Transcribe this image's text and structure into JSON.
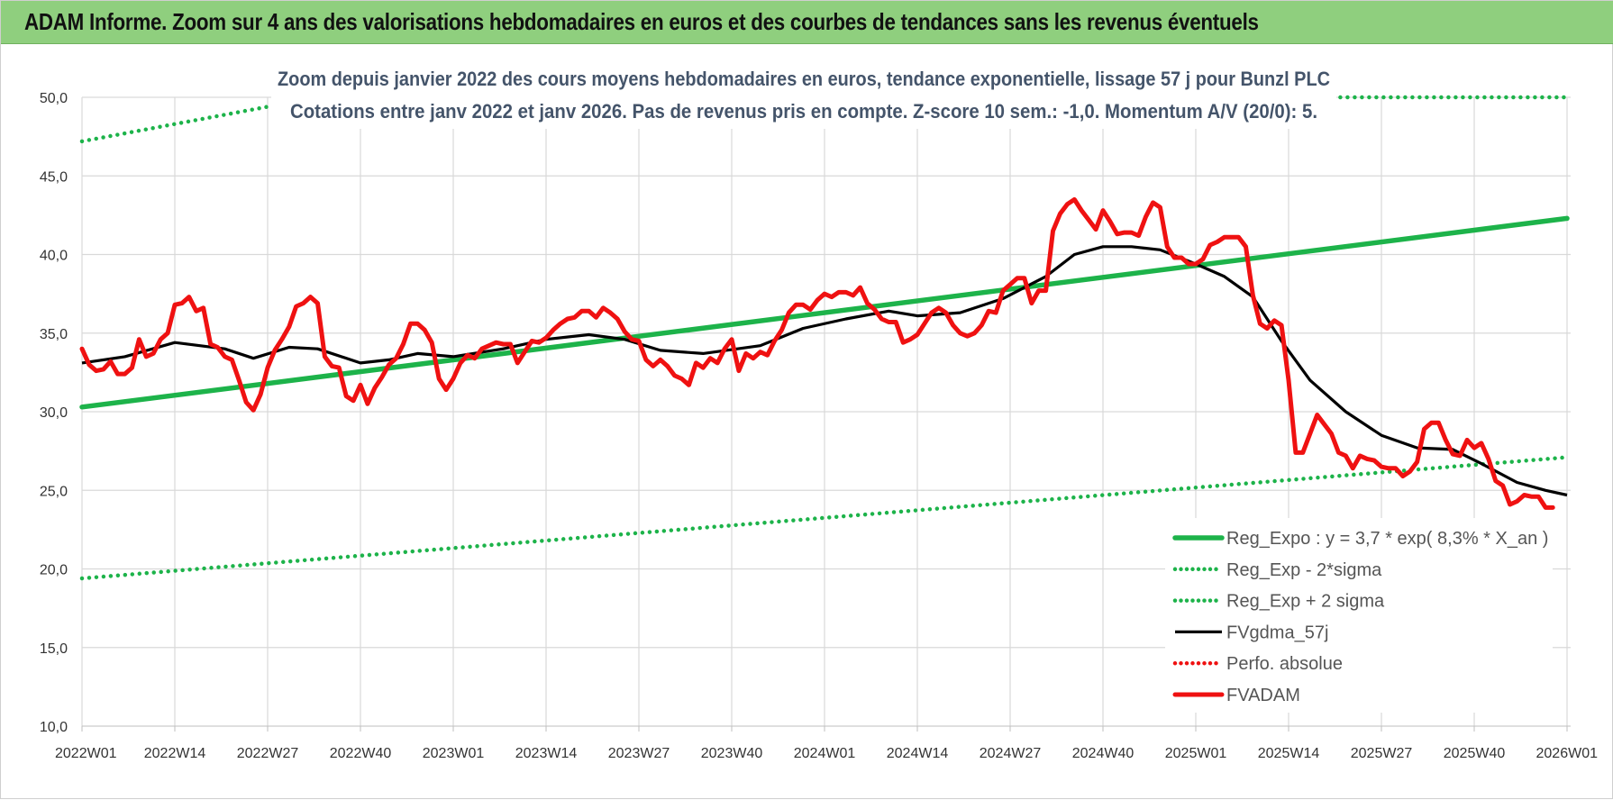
{
  "banner": {
    "title": "ADAM Informe. Zoom sur 4 ans des valorisations hebdomadaires en euros et des courbes de tendances sans les revenus éventuels"
  },
  "colors": {
    "banner_bg": "#8fcf7e",
    "trend_green": "#1db34a",
    "price_red": "#ef1111",
    "smooth_black": "#000000",
    "subtitle": "#44546a",
    "grid": "#d9d9d9"
  },
  "chart_data": {
    "type": "line",
    "title": "Zoom depuis janvier 2022 des cours moyens hebdomadaires en euros, tendance exponentielle, lissage 57 j pour Bunzl PLC",
    "subtitle": "Cotations entre janv 2022 et janv 2026. Pas de revenus pris en compte. Z-score 10 sem.: -1,0. Momentum A/V (20/0): 5.",
    "xlabel": "",
    "ylabel": "",
    "ylim": [
      10,
      50
    ],
    "yticks": [
      "10,0",
      "15,0",
      "20,0",
      "25,0",
      "30,0",
      "35,0",
      "40,0",
      "45,0",
      "50,0"
    ],
    "x_start": "2022W01",
    "x_end": "2026W01",
    "x_ticks": [
      "2022W01",
      "2022W14",
      "2022W27",
      "2022W40",
      "2023W01",
      "2023W14",
      "2023W27",
      "2023W40",
      "2024W01",
      "2024W14",
      "2024W27",
      "2024W40",
      "2025W01",
      "2025W14",
      "2025W27",
      "2025W40",
      "2026W01"
    ],
    "grid": true,
    "legend_position": "bottom-right",
    "legend": [
      {
        "label": "Reg_Expo : y = 3,7 * exp( 8,3% *  X_an )",
        "color": "#1db34a",
        "style": "solid-thick"
      },
      {
        "label": "Reg_Exp - 2*sigma",
        "color": "#1db34a",
        "style": "dotted"
      },
      {
        "label": "Reg_Exp + 2 sigma",
        "color": "#1db34a",
        "style": "dotted"
      },
      {
        "label": "FVgdma_57j",
        "color": "#000000",
        "style": "solid"
      },
      {
        "label": "Perfo. absolue",
        "color": "#ef1111",
        "style": "dotted"
      },
      {
        "label": "FVADAM",
        "color": "#ef1111",
        "style": "solid-thick"
      }
    ],
    "series": [
      {
        "name": "Reg_Expo : y = 3,7 * exp( 8,3% *  X_an )",
        "style": "solid-thick",
        "color": "#1db34a",
        "points": [
          [
            "2022W01",
            30.3
          ],
          [
            "2026W01",
            42.3
          ]
        ]
      },
      {
        "name": "Reg_Exp - 2*sigma",
        "style": "dotted",
        "color": "#1db34a",
        "points": [
          [
            "2022W01",
            19.4
          ],
          [
            "2026W01",
            27.1
          ]
        ]
      },
      {
        "name": "Reg_Exp + 2 sigma",
        "style": "dotted",
        "color": "#1db34a",
        "points": [
          [
            "2022W01",
            47.2
          ],
          [
            "2022W27",
            49.4
          ],
          [
            "2025W22",
            50.0
          ],
          [
            "2026W01",
            50.0
          ]
        ]
      },
      {
        "name": "FVgdma_57j",
        "style": "solid",
        "color": "#000000",
        "points": [
          [
            "2022W01",
            33.1
          ],
          [
            "2022W07",
            33.5
          ],
          [
            "2022W14",
            34.4
          ],
          [
            "2022W21",
            34.0
          ],
          [
            "2022W25",
            33.4
          ],
          [
            "2022W30",
            34.1
          ],
          [
            "2022W34",
            34.0
          ],
          [
            "2022W40",
            33.1
          ],
          [
            "2022W44",
            33.3
          ],
          [
            "2022W48",
            33.7
          ],
          [
            "2023W01",
            33.5
          ],
          [
            "2023W08",
            34.0
          ],
          [
            "2023W14",
            34.6
          ],
          [
            "2023W20",
            34.9
          ],
          [
            "2023W25",
            34.6
          ],
          [
            "2023W30",
            33.9
          ],
          [
            "2023W36",
            33.7
          ],
          [
            "2023W44",
            34.2
          ],
          [
            "2023W50",
            35.3
          ],
          [
            "2024W04",
            35.9
          ],
          [
            "2024W10",
            36.4
          ],
          [
            "2024W14",
            36.1
          ],
          [
            "2024W20",
            36.3
          ],
          [
            "2024W26",
            37.2
          ],
          [
            "2024W32",
            38.6
          ],
          [
            "2024W36",
            40.0
          ],
          [
            "2024W40",
            40.5
          ],
          [
            "2024W44",
            40.5
          ],
          [
            "2024W48",
            40.3
          ],
          [
            "2025W01",
            39.4
          ],
          [
            "2025W05",
            38.6
          ],
          [
            "2025W09",
            37.3
          ],
          [
            "2025W13",
            34.5
          ],
          [
            "2025W17",
            32.0
          ],
          [
            "2025W22",
            30.0
          ],
          [
            "2025W27",
            28.5
          ],
          [
            "2025W32",
            27.7
          ],
          [
            "2025W37",
            27.6
          ],
          [
            "2025W41",
            26.7
          ],
          [
            "2025W46",
            25.5
          ],
          [
            "2025W50",
            25.0
          ],
          [
            "2026W01",
            24.7
          ]
        ]
      },
      {
        "name": "FVADAM",
        "style": "solid-thick",
        "color": "#ef1111",
        "points": [
          [
            "2022W01",
            34.0
          ],
          [
            "2022W02",
            33.0
          ],
          [
            "2022W03",
            32.6
          ],
          [
            "2022W04",
            32.7
          ],
          [
            "2022W05",
            33.2
          ],
          [
            "2022W06",
            32.4
          ],
          [
            "2022W07",
            32.4
          ],
          [
            "2022W08",
            32.8
          ],
          [
            "2022W09",
            34.6
          ],
          [
            "2022W10",
            33.5
          ],
          [
            "2022W11",
            33.7
          ],
          [
            "2022W12",
            34.6
          ],
          [
            "2022W13",
            35.0
          ],
          [
            "2022W14",
            36.8
          ],
          [
            "2022W15",
            36.9
          ],
          [
            "2022W16",
            37.3
          ],
          [
            "2022W17",
            36.4
          ],
          [
            "2022W18",
            36.6
          ],
          [
            "2022W19",
            34.3
          ],
          [
            "2022W20",
            34.1
          ],
          [
            "2022W21",
            33.5
          ],
          [
            "2022W22",
            33.3
          ],
          [
            "2022W23",
            32.0
          ],
          [
            "2022W24",
            30.6
          ],
          [
            "2022W25",
            30.1
          ],
          [
            "2022W26",
            31.1
          ],
          [
            "2022W27",
            32.8
          ],
          [
            "2022W28",
            33.9
          ],
          [
            "2022W29",
            34.6
          ],
          [
            "2022W30",
            35.4
          ],
          [
            "2022W31",
            36.7
          ],
          [
            "2022W32",
            36.9
          ],
          [
            "2022W33",
            37.3
          ],
          [
            "2022W34",
            36.9
          ],
          [
            "2022W35",
            33.5
          ],
          [
            "2022W36",
            32.9
          ],
          [
            "2022W37",
            32.8
          ],
          [
            "2022W38",
            31.0
          ],
          [
            "2022W39",
            30.7
          ],
          [
            "2022W40",
            31.7
          ],
          [
            "2022W41",
            30.5
          ],
          [
            "2022W42",
            31.5
          ],
          [
            "2022W43",
            32.2
          ],
          [
            "2022W44",
            33.0
          ],
          [
            "2022W45",
            33.4
          ],
          [
            "2022W46",
            34.3
          ],
          [
            "2022W47",
            35.6
          ],
          [
            "2022W48",
            35.6
          ],
          [
            "2022W49",
            35.2
          ],
          [
            "2022W50",
            34.4
          ],
          [
            "2022W51",
            32.1
          ],
          [
            "2022W52",
            31.4
          ],
          [
            "2023W01",
            32.1
          ],
          [
            "2023W02",
            33.1
          ],
          [
            "2023W03",
            33.6
          ],
          [
            "2023W04",
            33.4
          ],
          [
            "2023W05",
            34.0
          ],
          [
            "2023W06",
            34.2
          ],
          [
            "2023W07",
            34.4
          ],
          [
            "2023W08",
            34.3
          ],
          [
            "2023W09",
            34.3
          ],
          [
            "2023W10",
            33.1
          ],
          [
            "2023W11",
            33.8
          ],
          [
            "2023W12",
            34.5
          ],
          [
            "2023W13",
            34.4
          ],
          [
            "2023W14",
            34.7
          ],
          [
            "2023W15",
            35.2
          ],
          [
            "2023W16",
            35.6
          ],
          [
            "2023W17",
            35.9
          ],
          [
            "2023W18",
            36.0
          ],
          [
            "2023W19",
            36.4
          ],
          [
            "2023W20",
            36.4
          ],
          [
            "2023W21",
            36.0
          ],
          [
            "2023W22",
            36.6
          ],
          [
            "2023W23",
            36.3
          ],
          [
            "2023W24",
            35.9
          ],
          [
            "2023W25",
            35.1
          ],
          [
            "2023W26",
            34.6
          ],
          [
            "2023W27",
            34.5
          ],
          [
            "2023W28",
            33.3
          ],
          [
            "2023W29",
            32.9
          ],
          [
            "2023W30",
            33.3
          ],
          [
            "2023W31",
            32.9
          ],
          [
            "2023W32",
            32.3
          ],
          [
            "2023W33",
            32.1
          ],
          [
            "2023W34",
            31.7
          ],
          [
            "2023W35",
            33.1
          ],
          [
            "2023W36",
            32.8
          ],
          [
            "2023W37",
            33.4
          ],
          [
            "2023W38",
            33.1
          ],
          [
            "2023W39",
            34.0
          ],
          [
            "2023W40",
            34.6
          ],
          [
            "2023W41",
            32.6
          ],
          [
            "2023W42",
            33.7
          ],
          [
            "2023W43",
            33.4
          ],
          [
            "2023W44",
            33.8
          ],
          [
            "2023W45",
            33.6
          ],
          [
            "2023W46",
            34.5
          ],
          [
            "2023W47",
            35.2
          ],
          [
            "2023W48",
            36.3
          ],
          [
            "2023W49",
            36.8
          ],
          [
            "2023W50",
            36.8
          ],
          [
            "2023W51",
            36.5
          ],
          [
            "2023W52",
            37.1
          ],
          [
            "2024W01",
            37.5
          ],
          [
            "2024W02",
            37.3
          ],
          [
            "2024W03",
            37.6
          ],
          [
            "2024W04",
            37.6
          ],
          [
            "2024W05",
            37.4
          ],
          [
            "2024W06",
            37.9
          ],
          [
            "2024W07",
            36.9
          ],
          [
            "2024W08",
            36.5
          ],
          [
            "2024W09",
            35.9
          ],
          [
            "2024W10",
            35.7
          ],
          [
            "2024W11",
            35.7
          ],
          [
            "2024W12",
            34.4
          ],
          [
            "2024W13",
            34.6
          ],
          [
            "2024W14",
            34.9
          ],
          [
            "2024W15",
            35.6
          ],
          [
            "2024W16",
            36.3
          ],
          [
            "2024W17",
            36.6
          ],
          [
            "2024W18",
            36.3
          ],
          [
            "2024W19",
            35.5
          ],
          [
            "2024W20",
            35.0
          ],
          [
            "2024W21",
            34.8
          ],
          [
            "2024W22",
            35.0
          ],
          [
            "2024W23",
            35.5
          ],
          [
            "2024W24",
            36.4
          ],
          [
            "2024W25",
            36.3
          ],
          [
            "2024W26",
            37.7
          ],
          [
            "2024W27",
            38.1
          ],
          [
            "2024W28",
            38.5
          ],
          [
            "2024W29",
            38.5
          ],
          [
            "2024W30",
            36.9
          ],
          [
            "2024W31",
            37.7
          ],
          [
            "2024W32",
            37.7
          ],
          [
            "2024W33",
            41.5
          ],
          [
            "2024W34",
            42.6
          ],
          [
            "2024W35",
            43.2
          ],
          [
            "2024W36",
            43.5
          ],
          [
            "2024W37",
            42.8
          ],
          [
            "2024W38",
            42.2
          ],
          [
            "2024W39",
            41.6
          ],
          [
            "2024W40",
            42.8
          ],
          [
            "2024W41",
            42.1
          ],
          [
            "2024W42",
            41.3
          ],
          [
            "2024W43",
            41.4
          ],
          [
            "2024W44",
            41.4
          ],
          [
            "2024W45",
            41.2
          ],
          [
            "2024W46",
            42.4
          ],
          [
            "2024W47",
            43.3
          ],
          [
            "2024W48",
            43.0
          ],
          [
            "2024W49",
            40.5
          ],
          [
            "2024W50",
            39.8
          ],
          [
            "2024W51",
            39.8
          ],
          [
            "2024W52",
            39.4
          ],
          [
            "2025W01",
            39.4
          ],
          [
            "2025W02",
            39.7
          ],
          [
            "2025W03",
            40.6
          ],
          [
            "2025W04",
            40.8
          ],
          [
            "2025W05",
            41.1
          ],
          [
            "2025W06",
            41.1
          ],
          [
            "2025W07",
            41.1
          ],
          [
            "2025W08",
            40.5
          ],
          [
            "2025W09",
            37.4
          ],
          [
            "2025W10",
            35.6
          ],
          [
            "2025W11",
            35.3
          ],
          [
            "2025W12",
            35.8
          ],
          [
            "2025W13",
            35.5
          ],
          [
            "2025W14",
            32.0
          ],
          [
            "2025W15",
            27.4
          ],
          [
            "2025W16",
            27.4
          ],
          [
            "2025W17",
            28.6
          ],
          [
            "2025W18",
            29.8
          ],
          [
            "2025W19",
            29.2
          ],
          [
            "2025W20",
            28.6
          ],
          [
            "2025W21",
            27.4
          ],
          [
            "2025W22",
            27.2
          ],
          [
            "2025W23",
            26.4
          ],
          [
            "2025W24",
            27.2
          ],
          [
            "2025W25",
            27.0
          ],
          [
            "2025W26",
            26.9
          ],
          [
            "2025W27",
            26.5
          ],
          [
            "2025W28",
            26.4
          ],
          [
            "2025W29",
            26.4
          ],
          [
            "2025W30",
            25.9
          ],
          [
            "2025W31",
            26.2
          ],
          [
            "2025W32",
            26.8
          ],
          [
            "2025W33",
            28.9
          ],
          [
            "2025W34",
            29.3
          ],
          [
            "2025W35",
            29.3
          ],
          [
            "2025W36",
            28.2
          ],
          [
            "2025W37",
            27.3
          ],
          [
            "2025W38",
            27.2
          ],
          [
            "2025W39",
            28.2
          ],
          [
            "2025W40",
            27.7
          ],
          [
            "2025W41",
            28.0
          ],
          [
            "2025W42",
            27.0
          ],
          [
            "2025W43",
            25.6
          ],
          [
            "2025W44",
            25.3
          ],
          [
            "2025W45",
            24.1
          ],
          [
            "2025W46",
            24.3
          ],
          [
            "2025W47",
            24.7
          ],
          [
            "2025W48",
            24.6
          ],
          [
            "2025W49",
            24.6
          ],
          [
            "2025W50",
            23.9
          ],
          [
            "2025W51",
            23.9
          ]
        ]
      }
    ]
  }
}
